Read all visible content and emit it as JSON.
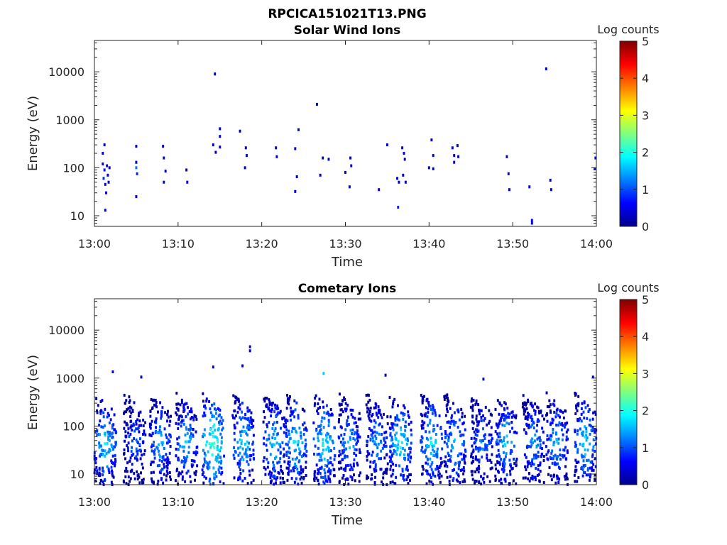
{
  "figure_title": "RPCICA151021T13.PNG",
  "chart_data": [
    {
      "type": "heatmap",
      "title": "Solar Wind Ions",
      "xlabel": "Time",
      "ylabel": "Energy (eV)",
      "x_tick_labels": [
        "13:00",
        "13:10",
        "13:20",
        "13:30",
        "13:40",
        "13:50",
        "14:00"
      ],
      "x_range_minutes": [
        0,
        60
      ],
      "y_scale": "log",
      "y_range": [
        6,
        45000
      ],
      "y_tick_values": [
        10,
        100,
        1000,
        10000
      ],
      "y_tick_labels": [
        "10",
        "100",
        "1000",
        "10000"
      ],
      "colorbar": {
        "label": "Log counts",
        "range": [
          0,
          5
        ],
        "ticks": [
          "0",
          "1",
          "2",
          "3",
          "4",
          "5"
        ],
        "colormap": "jet"
      },
      "points": [
        [
          1.0,
          200,
          0.5
        ],
        [
          1.0,
          120,
          0.6
        ],
        [
          1.2,
          90,
          0.7
        ],
        [
          1.1,
          60,
          0.8
        ],
        [
          1.3,
          45,
          0.6
        ],
        [
          1.4,
          30,
          0.5
        ],
        [
          1.2,
          300,
          0.4
        ],
        [
          1.5,
          110,
          0.5
        ],
        [
          1.6,
          70,
          0.6
        ],
        [
          1.7,
          50,
          0.4
        ],
        [
          1.3,
          13,
          0.5
        ],
        [
          1.8,
          100,
          0.4
        ],
        [
          5.0,
          280,
          0.4
        ],
        [
          5.0,
          130,
          0.5
        ],
        [
          5.0,
          100,
          1.2
        ],
        [
          5.1,
          75,
          0.8
        ],
        [
          5.0,
          25,
          0.5
        ],
        [
          8.2,
          280,
          0.4
        ],
        [
          8.3,
          160,
          0.5
        ],
        [
          8.5,
          85,
          0.4
        ],
        [
          8.3,
          50,
          0.5
        ],
        [
          11.0,
          90,
          0.4
        ],
        [
          11.1,
          50,
          0.5
        ],
        [
          14.4,
          9000,
          0.4
        ],
        [
          14.2,
          300,
          0.5
        ],
        [
          14.5,
          210,
          0.4
        ],
        [
          15.0,
          650,
          0.4
        ],
        [
          15.0,
          450,
          0.4
        ],
        [
          15.0,
          270,
          0.5
        ],
        [
          17.4,
          580,
          0.4
        ],
        [
          18.1,
          260,
          0.4
        ],
        [
          18.2,
          180,
          0.5
        ],
        [
          18.0,
          100,
          0.4
        ],
        [
          21.7,
          260,
          0.5
        ],
        [
          21.8,
          170,
          0.6
        ],
        [
          24.0,
          250,
          0.4
        ],
        [
          24.4,
          620,
          0.4
        ],
        [
          24.2,
          65,
          0.5
        ],
        [
          24.0,
          32,
          0.6
        ],
        [
          26.6,
          2100,
          0.4
        ],
        [
          27.3,
          160,
          0.4
        ],
        [
          27.0,
          70,
          0.4
        ],
        [
          28.0,
          150,
          0.4
        ],
        [
          30.0,
          80,
          0.4
        ],
        [
          30.6,
          160,
          0.4
        ],
        [
          30.7,
          110,
          0.5
        ],
        [
          30.5,
          40,
          0.4
        ],
        [
          34.0,
          35,
          0.5
        ],
        [
          35.0,
          300,
          0.4
        ],
        [
          36.2,
          60,
          0.4
        ],
        [
          36.3,
          15,
          0.8
        ],
        [
          36.4,
          50,
          0.5
        ],
        [
          36.8,
          260,
          0.5
        ],
        [
          37.0,
          200,
          0.6
        ],
        [
          37.1,
          150,
          0.5
        ],
        [
          36.9,
          70,
          0.4
        ],
        [
          37.2,
          50,
          0.4
        ],
        [
          40.3,
          380,
          0.4
        ],
        [
          40.5,
          180,
          0.4
        ],
        [
          40.0,
          100,
          0.4
        ],
        [
          40.5,
          95,
          0.4
        ],
        [
          42.8,
          260,
          0.5
        ],
        [
          43.0,
          180,
          0.4
        ],
        [
          43.0,
          130,
          0.4
        ],
        [
          43.4,
          290,
          0.4
        ],
        [
          43.5,
          170,
          0.4
        ],
        [
          49.3,
          170,
          0.4
        ],
        [
          49.5,
          75,
          0.4
        ],
        [
          49.6,
          35,
          0.4
        ],
        [
          52.0,
          40,
          0.5
        ],
        [
          52.3,
          7,
          0.6
        ],
        [
          52.3,
          8,
          0.6
        ],
        [
          54.0,
          11500,
          0.4
        ],
        [
          54.5,
          55,
          0.4
        ],
        [
          54.6,
          35,
          0.5
        ],
        [
          59.9,
          160,
          0.5
        ],
        [
          59.8,
          95,
          0.4
        ]
      ]
    },
    {
      "type": "heatmap",
      "title": "Cometary Ions",
      "xlabel": "Time",
      "ylabel": "Energy (eV)",
      "x_tick_labels": [
        "13:00",
        "13:10",
        "13:20",
        "13:30",
        "13:40",
        "13:50",
        "14:00"
      ],
      "x_range_minutes": [
        0,
        60
      ],
      "y_scale": "log",
      "y_range": [
        6,
        45000
      ],
      "y_tick_values": [
        10,
        100,
        1000,
        10000
      ],
      "y_tick_labels": [
        "10",
        "100",
        "1000",
        "10000"
      ],
      "colorbar": {
        "label": "Log counts",
        "range": [
          0,
          5
        ],
        "ticks": [
          "0",
          "1",
          "2",
          "3",
          "4",
          "5"
        ],
        "colormap": "jet"
      },
      "bursts": [
        {
          "t": 1.3,
          "peak": 1.8
        },
        {
          "t": 4.8,
          "peak": 1.3
        },
        {
          "t": 7.9,
          "peak": 1.6
        },
        {
          "t": 11.0,
          "peak": 1.7
        },
        {
          "t": 14.2,
          "peak": 2.2
        },
        {
          "t": 17.8,
          "peak": 1.8
        },
        {
          "t": 21.5,
          "peak": 1.7
        },
        {
          "t": 24.1,
          "peak": 1.8
        },
        {
          "t": 27.5,
          "peak": 1.9
        },
        {
          "t": 30.5,
          "peak": 1.6
        },
        {
          "t": 33.8,
          "peak": 1.5
        },
        {
          "t": 36.6,
          "peak": 1.9
        },
        {
          "t": 40.3,
          "peak": 1.8
        },
        {
          "t": 43.1,
          "peak": 1.7
        },
        {
          "t": 46.3,
          "peak": 1.4
        },
        {
          "t": 49.2,
          "peak": 1.7
        },
        {
          "t": 52.5,
          "peak": 1.5
        },
        {
          "t": 55.3,
          "peak": 1.6
        },
        {
          "t": 58.7,
          "peak": 1.8
        }
      ],
      "isolated_points": [
        [
          2.2,
          1350,
          0.4
        ],
        [
          5.6,
          1050,
          0.4
        ],
        [
          14.2,
          1700,
          0.4
        ],
        [
          17.7,
          1800,
          0.4
        ],
        [
          18.6,
          4500,
          0.4
        ],
        [
          18.6,
          3700,
          0.4
        ],
        [
          27.4,
          1250,
          1.6
        ],
        [
          34.8,
          1150,
          0.4
        ],
        [
          46.5,
          950,
          0.4
        ],
        [
          59.6,
          1050,
          0.4
        ],
        [
          8.2,
          6.5,
          0.4
        ]
      ]
    }
  ]
}
